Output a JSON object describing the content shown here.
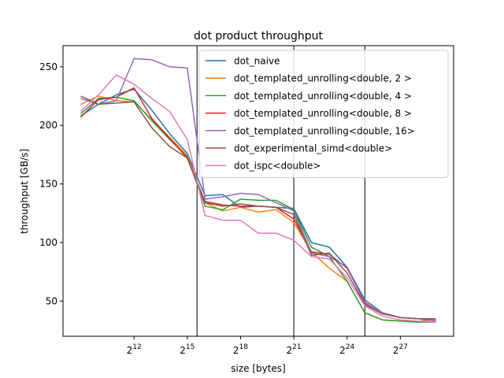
{
  "chart_data": {
    "type": "line",
    "title": "dot product throughput",
    "xlabel": "size [bytes]",
    "ylabel": "throughput [GB/s]",
    "x_scale": "log2",
    "xlim_log2": [
      8,
      30
    ],
    "ylim": [
      20,
      268
    ],
    "x_ticks": [
      {
        "base": "2",
        "exp": "12",
        "log2": 12
      },
      {
        "base": "2",
        "exp": "15",
        "log2": 15
      },
      {
        "base": "2",
        "exp": "18",
        "log2": 18
      },
      {
        "base": "2",
        "exp": "21",
        "log2": 21
      },
      {
        "base": "2",
        "exp": "24",
        "log2": 24
      },
      {
        "base": "2",
        "exp": "27",
        "log2": 27
      }
    ],
    "y_ticks": [
      50,
      100,
      150,
      200,
      250
    ],
    "vlines_log2": [
      15.55,
      21,
      25
    ],
    "x_log2": [
      9,
      10,
      11,
      12,
      13,
      14,
      15,
      16,
      17,
      18,
      19,
      20,
      21,
      22,
      23,
      24,
      25,
      26,
      27,
      28,
      29
    ],
    "legend_position": "upper right",
    "series": [
      {
        "name": "dot_naive",
        "color": "#1f77b4",
        "values": [
          208,
          218,
          226,
          231,
          213,
          193,
          176,
          140,
          141,
          130,
          131,
          130,
          129,
          100,
          96,
          79,
          51,
          40,
          36,
          35,
          34
        ]
      },
      {
        "name": "dot_templated_unrolling<double, 2 >",
        "color": "#ff7f0e",
        "values": [
          218,
          225,
          221,
          220,
          205,
          190,
          174,
          134,
          127,
          130,
          126,
          128,
          117,
          92,
          78,
          67,
          40,
          34,
          33,
          33,
          34
        ]
      },
      {
        "name": "dot_templated_unrolling<double, 4 >",
        "color": "#2ca02c",
        "values": [
          210,
          223,
          224,
          221,
          204,
          188,
          173,
          131,
          128,
          137,
          136,
          136,
          128,
          96,
          88,
          67,
          40,
          34,
          33,
          32,
          32
        ]
      },
      {
        "name": "dot_templated_unrolling<double, 8 >",
        "color": "#d62728",
        "values": [
          207,
          222,
          224,
          232,
          206,
          189,
          172,
          135,
          132,
          131,
          131,
          130,
          120,
          92,
          90,
          78,
          49,
          39,
          36,
          35,
          35
        ]
      },
      {
        "name": "dot_templated_unrolling<double, 16>",
        "color": "#9467bd",
        "values": [
          223,
          218,
          221,
          257,
          256,
          250,
          249,
          137,
          139,
          142,
          141,
          134,
          127,
          91,
          88,
          79,
          48,
          40,
          36,
          35,
          33
        ]
      },
      {
        "name": "dot_experimental_simd<double>",
        "color": "#8c564b",
        "values": [
          225,
          218,
          219,
          220,
          198,
          182,
          172,
          134,
          131,
          133,
          131,
          130,
          124,
          89,
          91,
          74,
          47,
          39,
          36,
          35,
          35
        ]
      },
      {
        "name": "dot_ispc<double>",
        "color": "#e377c2",
        "values": [
          212,
          226,
          243,
          235,
          223,
          212,
          188,
          123,
          119,
          119,
          108,
          108,
          102,
          88,
          86,
          70,
          46,
          37,
          34,
          33,
          32
        ]
      }
    ]
  }
}
